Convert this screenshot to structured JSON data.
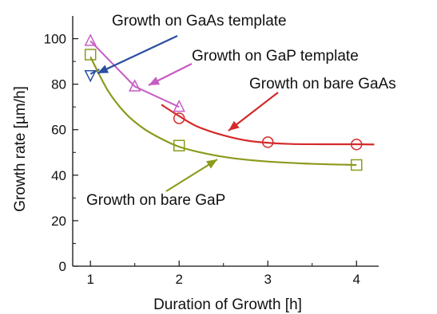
{
  "chart_data": {
    "type": "scatter",
    "xlabel": "Duration of Growth [h]",
    "ylabel": "Growth rate [µm/h]",
    "xlim": [
      0.8,
      4.25
    ],
    "ylim": [
      0,
      110
    ],
    "xticks": [
      1,
      2,
      3,
      4
    ],
    "yticks": [
      0,
      20,
      40,
      60,
      80,
      100
    ],
    "grid": false,
    "series": [
      {
        "name": "Growth on GaAs template",
        "marker": "triangle-down",
        "color": "#2b4fa0",
        "x": [
          1
        ],
        "y": [
          84
        ],
        "fit": [
          [
            1,
            84.5
          ],
          [
            1.1,
            86.5
          ]
        ]
      },
      {
        "name": "Growth on GaP template",
        "marker": "triangle-up",
        "color": "#c65cc4",
        "x": [
          1,
          1.5,
          2
        ],
        "y": [
          99,
          79,
          70
        ]
      },
      {
        "name": "Growth on bare GaAs",
        "marker": "circle",
        "color": "#d42a2a",
        "x": [
          2,
          3,
          4
        ],
        "y": [
          65,
          54.5,
          53.5
        ],
        "fit": [
          [
            1.8,
            71
          ],
          [
            2,
            66
          ],
          [
            2.2,
            61.5
          ],
          [
            2.5,
            57.5
          ],
          [
            2.8,
            55
          ],
          [
            3.2,
            53.8
          ],
          [
            3.6,
            53.6
          ],
          [
            4,
            53.6
          ],
          [
            4.2,
            53.5
          ]
        ]
      },
      {
        "name": "Growth on bare GaP",
        "marker": "square",
        "color": "#8c9a1c",
        "x": [
          1,
          2,
          4
        ],
        "y": [
          93,
          53,
          44.5
        ],
        "fit": [
          [
            1,
            92
          ],
          [
            1.2,
            77
          ],
          [
            1.4,
            67
          ],
          [
            1.6,
            60.5
          ],
          [
            1.8,
            56
          ],
          [
            2,
            52.5
          ],
          [
            2.3,
            49.5
          ],
          [
            2.6,
            47.5
          ],
          [
            3,
            46
          ],
          [
            3.5,
            45
          ],
          [
            4,
            44.5
          ]
        ]
      }
    ],
    "annotations": [
      {
        "text": "Growth on GaAs template",
        "color": "#2b4fa0"
      },
      {
        "text": "Growth on GaP template",
        "color": "#c65cc4"
      },
      {
        "text": "Growth on bare GaAs",
        "color": "#d42a2a"
      },
      {
        "text": "Growth on bare GaP",
        "color": "#8c9a1c"
      }
    ]
  }
}
